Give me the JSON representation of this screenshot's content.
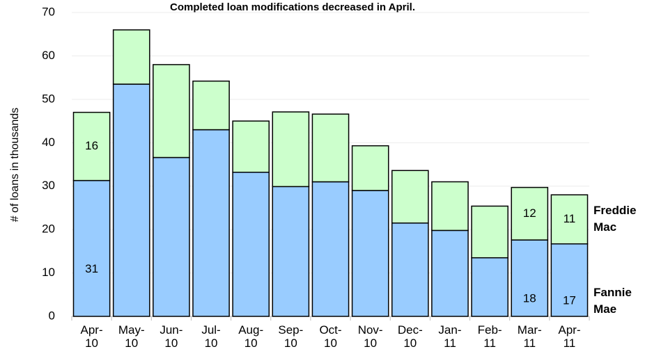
{
  "chart_data": {
    "type": "stacked_bar",
    "title": "Completed loan modifications decreased in April.",
    "y_label": "# of loans in thousands",
    "categories": [
      "Apr-10",
      "May-10",
      "Jun-10",
      "Jul-10",
      "Aug-10",
      "Sep-10",
      "Oct-10",
      "Nov-10",
      "Dec-10",
      "Jan-11",
      "Feb-11",
      "Mar-11",
      "Apr-11"
    ],
    "series": [
      {
        "name": "Fannie Mae",
        "color": "#99ccff",
        "values": [
          31.3,
          53.5,
          36.6,
          43.0,
          33.2,
          29.9,
          31.0,
          29.0,
          21.5,
          19.8,
          13.5,
          17.6,
          16.7
        ],
        "value_labels": [
          "31",
          null,
          null,
          null,
          null,
          null,
          null,
          null,
          null,
          null,
          null,
          "18",
          "17"
        ]
      },
      {
        "name": "Freddie Mac",
        "color": "#ccffcc",
        "values": [
          15.7,
          12.5,
          21.4,
          11.2,
          11.8,
          17.2,
          15.6,
          10.3,
          12.1,
          11.2,
          11.9,
          12.1,
          11.3
        ],
        "value_labels": [
          "16",
          null,
          null,
          null,
          null,
          null,
          null,
          null,
          null,
          null,
          null,
          "12",
          "11"
        ]
      }
    ],
    "ylim": [
      0,
      70
    ],
    "yticks": [
      0,
      10,
      20,
      30,
      40,
      50,
      60,
      70
    ],
    "grid": true
  }
}
